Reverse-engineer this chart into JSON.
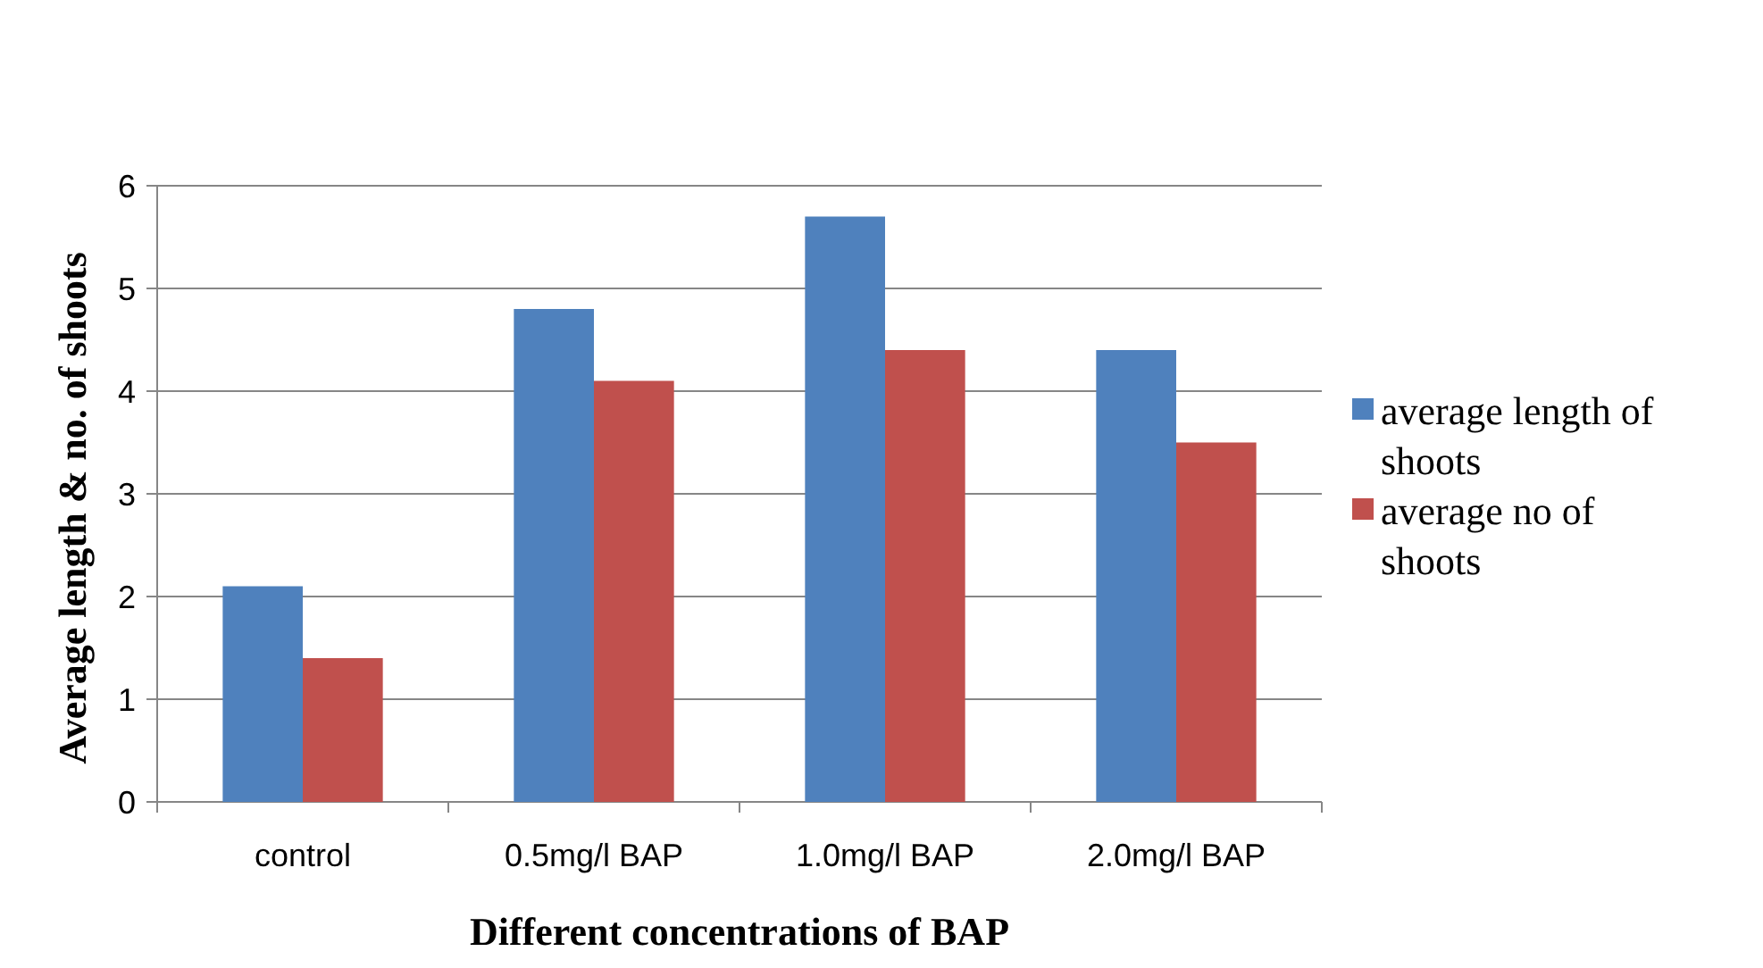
{
  "chart_data": {
    "type": "bar",
    "xlabel": "Different concentrations of BAP",
    "ylabel": "Average length & no. of shoots",
    "categories": [
      "control",
      "0.5mg/l BAP",
      "1.0mg/l BAP",
      "2.0mg/l BAP"
    ],
    "series": [
      {
        "name": "average length of shoots",
        "color": "#4f81bd",
        "values": [
          2.1,
          4.8,
          5.7,
          4.4
        ]
      },
      {
        "name": "average no of shoots",
        "color": "#c0504d",
        "values": [
          1.4,
          4.1,
          4.4,
          3.5
        ]
      }
    ],
    "ylim": [
      0,
      6
    ],
    "yticks": [
      0,
      1,
      2,
      3,
      4,
      5,
      6
    ],
    "grid": "y",
    "legend": "right"
  }
}
